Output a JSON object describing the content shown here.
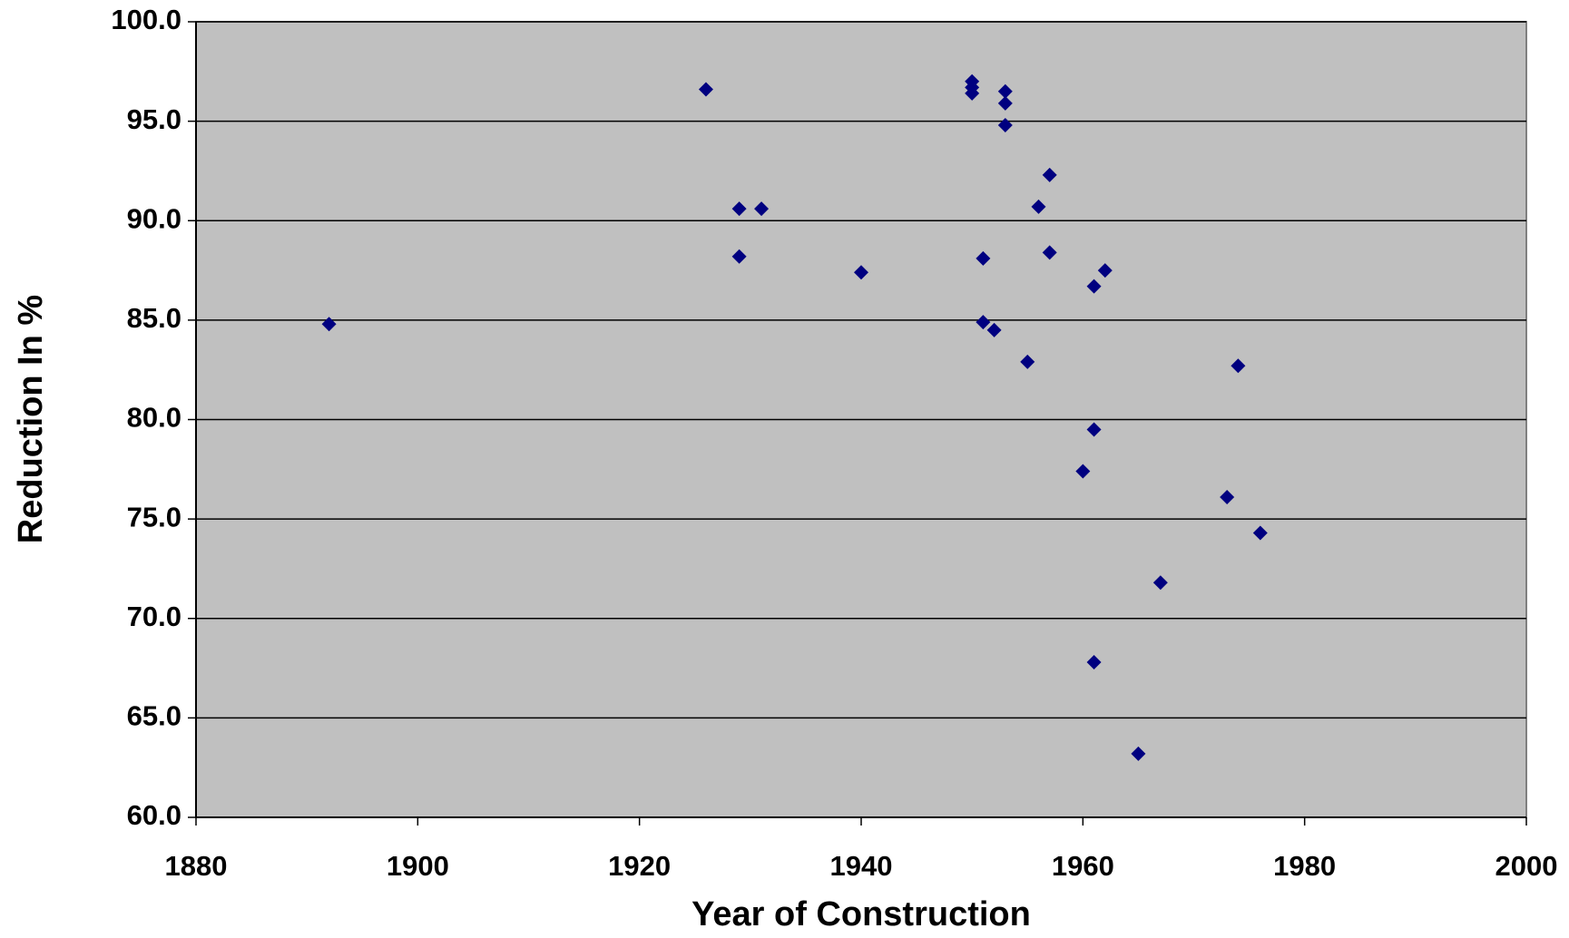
{
  "chart_data": {
    "type": "scatter",
    "xlabel": "Year of Construction",
    "ylabel": "Reduction In %",
    "color": "#000080",
    "grid": true,
    "xlim": [
      1880,
      2000
    ],
    "xticks": [
      1880,
      1900,
      1920,
      1940,
      1960,
      1980,
      2000
    ],
    "ylim": [
      60,
      100
    ],
    "yticks": [
      {
        "value": 60,
        "label": "60.0"
      },
      {
        "value": 65,
        "label": "65.0"
      },
      {
        "value": 70,
        "label": "70.0"
      },
      {
        "value": 75,
        "label": "75.0"
      },
      {
        "value": 80,
        "label": "80.0"
      },
      {
        "value": 85,
        "label": "85.0"
      },
      {
        "value": 90,
        "label": "90.0"
      },
      {
        "value": 95,
        "label": "95.0"
      },
      {
        "value": 100,
        "label": "100.0"
      }
    ],
    "x": [
      1892,
      1926,
      1929,
      1931,
      1929,
      1940,
      1950,
      1950,
      1950,
      1953,
      1953,
      1953,
      1957,
      1956,
      1957,
      1951,
      1962,
      1961,
      1951,
      1952,
      1955,
      1974,
      1961,
      1960,
      1973,
      1976,
      1967,
      1961,
      1965
    ],
    "values": [
      84.8,
      96.6,
      90.6,
      90.6,
      88.2,
      87.4,
      97.0,
      96.7,
      96.4,
      96.5,
      95.9,
      94.8,
      92.3,
      90.7,
      88.4,
      88.1,
      87.5,
      86.7,
      84.9,
      84.5,
      82.9,
      82.7,
      79.5,
      77.4,
      76.1,
      74.3,
      71.8,
      67.8,
      63.2
    ]
  }
}
